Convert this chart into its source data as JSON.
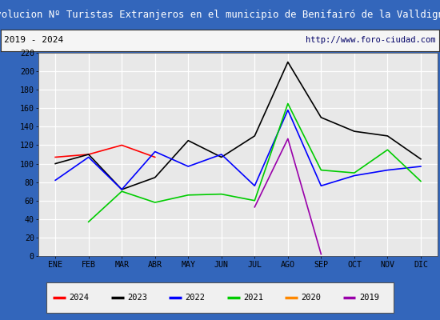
{
  "title": "Evolucion Nº Turistas Extranjeros en el municipio de Benifairó de la Valldigna",
  "subtitle_left": "2019 - 2024",
  "subtitle_right": "http://www.foro-ciudad.com",
  "months": [
    "ENE",
    "FEB",
    "MAR",
    "ABR",
    "MAY",
    "JUN",
    "JUL",
    "AGO",
    "SEP",
    "OCT",
    "NOV",
    "DIC"
  ],
  "ylim": [
    0,
    220
  ],
  "yticks": [
    0,
    20,
    40,
    60,
    80,
    100,
    120,
    140,
    160,
    180,
    200,
    220
  ],
  "series": {
    "2024": {
      "color": "#ff0000",
      "values": [
        107,
        110,
        120,
        107,
        null,
        null,
        null,
        null,
        null,
        null,
        null,
        null
      ]
    },
    "2023": {
      "color": "#000000",
      "values": [
        100,
        110,
        72,
        85,
        125,
        107,
        130,
        210,
        150,
        135,
        130,
        105
      ]
    },
    "2022": {
      "color": "#0000ff",
      "values": [
        82,
        107,
        72,
        113,
        97,
        110,
        76,
        158,
        76,
        87,
        93,
        97
      ]
    },
    "2021": {
      "color": "#00cc00",
      "values": [
        null,
        37,
        70,
        58,
        66,
        67,
        60,
        165,
        93,
        90,
        115,
        81
      ]
    },
    "2020": {
      "color": "#ff8800",
      "values": [
        null,
        null,
        null,
        null,
        null,
        null,
        null,
        null,
        null,
        null,
        null,
        null
      ]
    },
    "2019": {
      "color": "#9900aa",
      "values": [
        null,
        null,
        null,
        null,
        null,
        null,
        53,
        127,
        2,
        null,
        null,
        null
      ]
    }
  },
  "legend_order": [
    "2024",
    "2023",
    "2022",
    "2021",
    "2020",
    "2019"
  ],
  "title_bg_color": "#4477cc",
  "title_text_color": "#ffffff",
  "subtitle_bg_color": "#f5f5f5",
  "plot_bg_color": "#e8e8e8",
  "grid_color": "#ffffff",
  "fig_bg_color": "#ffffff",
  "outer_border_color": "#3366bb"
}
